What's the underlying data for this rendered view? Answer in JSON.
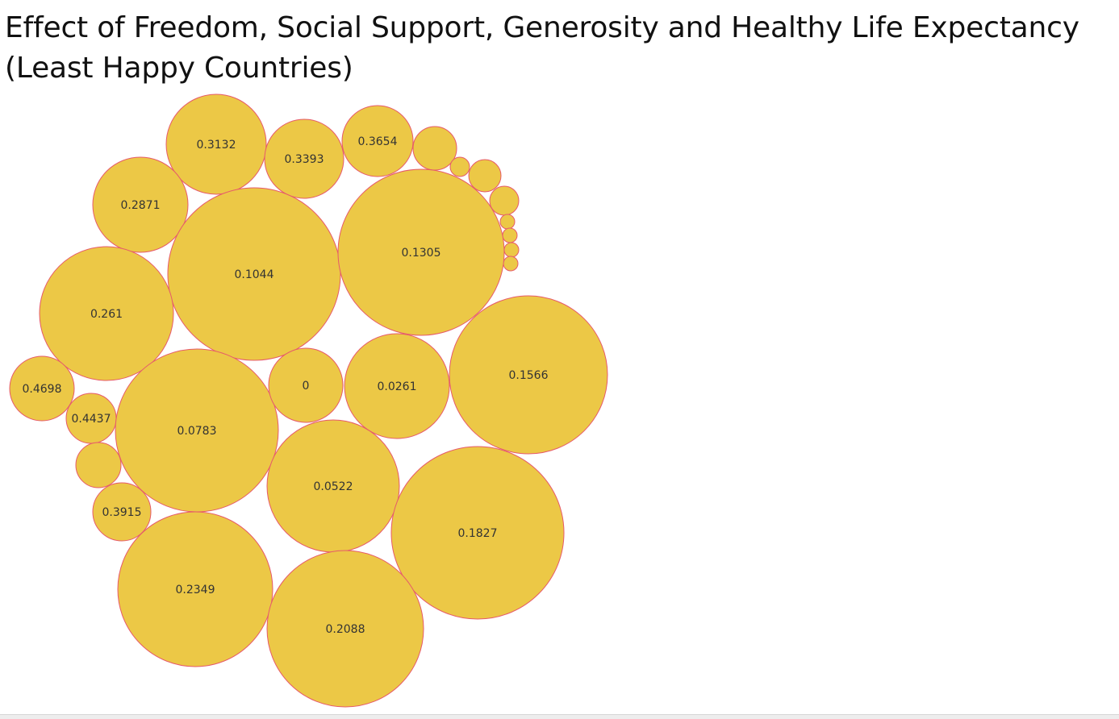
{
  "chart_data": {
    "type": "packed-bubble",
    "title": "Effect of Freedom, Social Support, Generosity and Healthy Life Expectancy (Least Happy Countries)",
    "colors": {
      "bubble_fill": "#ecc846",
      "bubble_stroke": "#e65a6a"
    },
    "bubbles": [
      {
        "label": "0.3132"
      },
      {
        "label": "0.3393"
      },
      {
        "label": "0.3654"
      },
      {
        "label": ""
      },
      {
        "label": ""
      },
      {
        "label": ""
      },
      {
        "label": ""
      },
      {
        "label": ""
      },
      {
        "label": ""
      },
      {
        "label": ""
      },
      {
        "label": ""
      },
      {
        "label": "0.2871"
      },
      {
        "label": "0.1044"
      },
      {
        "label": "0.1305"
      },
      {
        "label": "0.261"
      },
      {
        "label": "0.4698"
      },
      {
        "label": "0.4437"
      },
      {
        "label": ""
      },
      {
        "label": "0.0783"
      },
      {
        "label": "0"
      },
      {
        "label": "0.0261"
      },
      {
        "label": "0.1566"
      },
      {
        "label": "0.0522"
      },
      {
        "label": "0.3915"
      },
      {
        "label": "0.1827"
      },
      {
        "label": "0.2349"
      },
      {
        "label": "0.2088"
      }
    ]
  }
}
